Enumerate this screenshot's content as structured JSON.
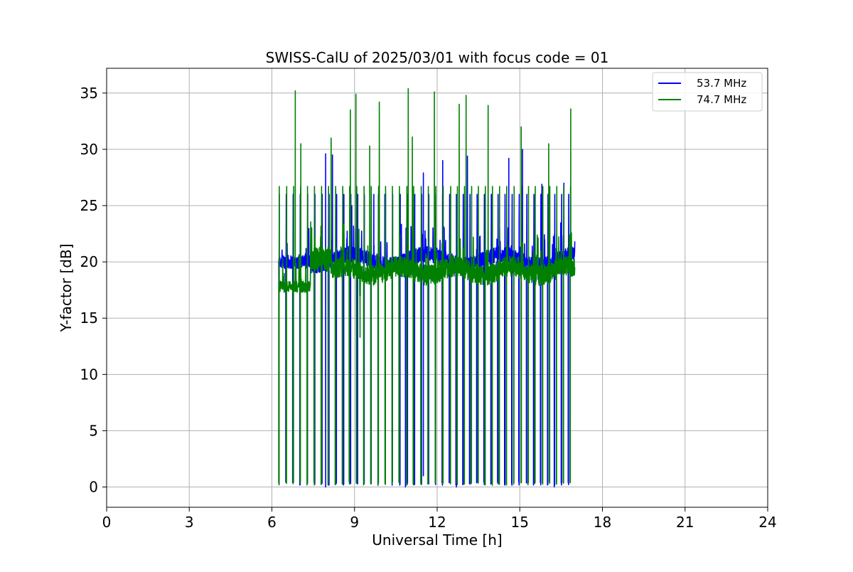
{
  "chart_data": {
    "type": "line",
    "title": "SWISS-CalU of 2025/03/01 with focus code = 01",
    "xlabel": "Universal Time [h]",
    "ylabel": "Y-factor [dB]",
    "xlim": [
      0,
      24
    ],
    "ylim": [
      -1.8,
      37.2
    ],
    "xticks": [
      0,
      3,
      6,
      9,
      12,
      15,
      18,
      21,
      24
    ],
    "yticks": [
      0,
      5,
      10,
      15,
      20,
      25,
      30,
      35
    ],
    "grid": true,
    "legend_position": "top-right",
    "series": [
      {
        "name": "53.7 MHz",
        "color": "#0000ff",
        "x_range": [
          6.25,
          17.0
        ],
        "baseline": 20.0,
        "spikes": [
          {
            "x": 7.95,
            "y": 29.6
          },
          {
            "x": 8.2,
            "y": 29.5
          },
          {
            "x": 8.9,
            "y": 25.0
          },
          {
            "x": 9.7,
            "y": 26.0
          },
          {
            "x": 10.1,
            "y": 26.0
          },
          {
            "x": 11.5,
            "y": 27.9
          },
          {
            "x": 12.2,
            "y": 29.0
          },
          {
            "x": 13.1,
            "y": 29.4
          },
          {
            "x": 14.6,
            "y": 29.2
          },
          {
            "x": 15.1,
            "y": 30.0
          },
          {
            "x": 15.8,
            "y": 26.9
          },
          {
            "x": 16.6,
            "y": 27.0
          }
        ],
        "drops": [
          {
            "x": 6.25,
            "y": 1.4
          },
          {
            "x": 7.95,
            "y": 0.0
          },
          {
            "x": 11.5,
            "y": 1.0
          },
          {
            "x": 10.85,
            "y": 0.0
          },
          {
            "x": 12.7,
            "y": 0.0
          },
          {
            "x": 16.25,
            "y": 0.0
          }
        ]
      },
      {
        "name": "74.7 MHz",
        "color": "#008000",
        "x_range": [
          6.25,
          17.0
        ],
        "baseline": 19.0,
        "spikes": [
          {
            "x": 6.85,
            "y": 35.2
          },
          {
            "x": 7.05,
            "y": 30.5
          },
          {
            "x": 8.15,
            "y": 31.0
          },
          {
            "x": 8.85,
            "y": 33.5
          },
          {
            "x": 9.05,
            "y": 34.9
          },
          {
            "x": 9.55,
            "y": 30.3
          },
          {
            "x": 9.9,
            "y": 34.2
          },
          {
            "x": 10.95,
            "y": 35.4
          },
          {
            "x": 11.1,
            "y": 31.1
          },
          {
            "x": 11.9,
            "y": 35.1
          },
          {
            "x": 12.8,
            "y": 34.0
          },
          {
            "x": 13.05,
            "y": 34.8
          },
          {
            "x": 13.85,
            "y": 33.9
          },
          {
            "x": 15.05,
            "y": 32.0
          },
          {
            "x": 16.05,
            "y": 30.5
          },
          {
            "x": 16.85,
            "y": 33.6
          }
        ],
        "dips": [
          {
            "x": 9.2,
            "y": 13.3
          }
        ],
        "drops_to": 0.1
      }
    ]
  }
}
